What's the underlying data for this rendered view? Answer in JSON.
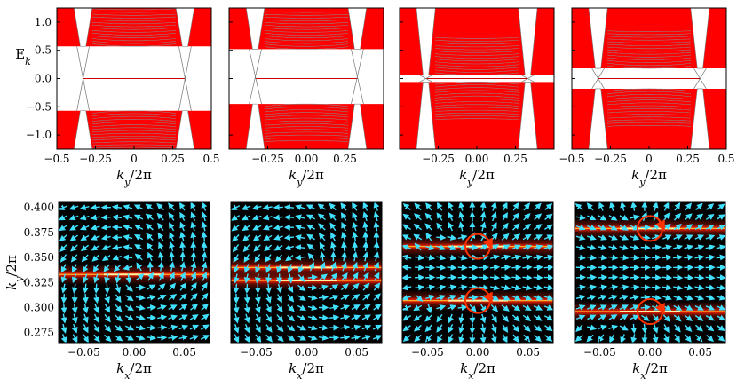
{
  "chart_data": [
    {
      "type": "line",
      "panel": "top-1",
      "xlabel": "k_y/2π",
      "ylabel": "E_k",
      "xlim": [
        -0.5,
        0.5
      ],
      "ylim": [
        -1.25,
        1.25
      ],
      "xticks": [
        "−0.5",
        "−0.25",
        "0",
        "0.25",
        "0.5"
      ],
      "yticks": [
        "1.0",
        "0.5",
        "0.0",
        "−0.5",
        "−1.0"
      ],
      "band_gap": [
        -0.57,
        0.57
      ],
      "node_x": [
        -0.33,
        0.33
      ],
      "colors": {
        "bands": "#ff0000",
        "grid_lines": "#8a8a8a",
        "zero_mode": "#cc0000"
      }
    },
    {
      "type": "line",
      "panel": "top-2",
      "xlabel": "k_y/2π",
      "xlim": [
        -0.5,
        0.5
      ],
      "ylim": [
        -1.25,
        1.25
      ],
      "xticks": [
        "−0.25",
        "0.00",
        "0.25"
      ],
      "band_gap": [
        -0.45,
        0.52
      ],
      "node_x": [
        -0.33,
        0.33
      ]
    },
    {
      "type": "line",
      "panel": "top-3",
      "xlabel": "k_y/2π",
      "xlim": [
        -0.5,
        0.5
      ],
      "ylim": [
        -1.25,
        1.25
      ],
      "xticks": [
        "−0.25",
        "0.00",
        "0.25"
      ],
      "band_gap": [
        -0.06,
        0.06
      ],
      "node_x": [
        -0.33,
        0.33
      ]
    },
    {
      "type": "line",
      "panel": "top-4",
      "xlabel": "k_y/2π",
      "xlim": [
        -0.5,
        0.5
      ],
      "ylim": [
        -1.25,
        1.25
      ],
      "xticks": [
        "−0.5",
        "−0.25",
        "0",
        "0.25",
        "0.5"
      ],
      "band_gap": [
        -0.18,
        0.18
      ],
      "node_x": [
        -0.33,
        0.33
      ]
    },
    {
      "type": "heatmap",
      "panel": "bottom-1",
      "xlabel": "k_x/2π",
      "ylabel": "k_y/2π",
      "xlim": [
        -0.075,
        0.075
      ],
      "ylim": [
        0.265,
        0.405
      ],
      "xticks": [
        "−0.05",
        "0.00",
        "0.05"
      ],
      "yticks": [
        "0.400",
        "0.375",
        "0.350",
        "0.325",
        "0.300",
        "0.275"
      ],
      "bright_rows_ky": [
        0.333
      ],
      "vortex_centers": [],
      "colors": {
        "background": "#000000",
        "hot": "#ff3300",
        "arrows": "#40e0ff",
        "circle": "#ff3300"
      }
    },
    {
      "type": "heatmap",
      "panel": "bottom-2",
      "xlabel": "k_x/2π",
      "xlim": [
        -0.075,
        0.075
      ],
      "ylim": [
        0.265,
        0.405
      ],
      "xticks": [
        "−0.05",
        "0.00",
        "0.05"
      ],
      "bright_rows_ky": [
        0.34,
        0.327
      ],
      "vortex_centers": []
    },
    {
      "type": "heatmap",
      "panel": "bottom-3",
      "xlabel": "k_x/2π",
      "xlim": [
        -0.075,
        0.075
      ],
      "ylim": [
        0.265,
        0.405
      ],
      "xticks": [
        "−0.05",
        "0.00",
        "0.05"
      ],
      "bright_rows_ky": [
        0.361,
        0.307
      ],
      "vortex_centers": [
        [
          0.0,
          0.361
        ],
        [
          0.0,
          0.307
        ]
      ]
    },
    {
      "type": "heatmap",
      "panel": "bottom-4",
      "xlabel": "k_x/2π",
      "xlim": [
        -0.075,
        0.075
      ],
      "ylim": [
        0.265,
        0.405
      ],
      "xticks": [
        "−0.05",
        "0.00",
        "0.05"
      ],
      "bright_rows_ky": [
        0.379,
        0.296
      ],
      "vortex_centers": [
        [
          0.0,
          0.379
        ],
        [
          0.0,
          0.296
        ]
      ]
    }
  ]
}
